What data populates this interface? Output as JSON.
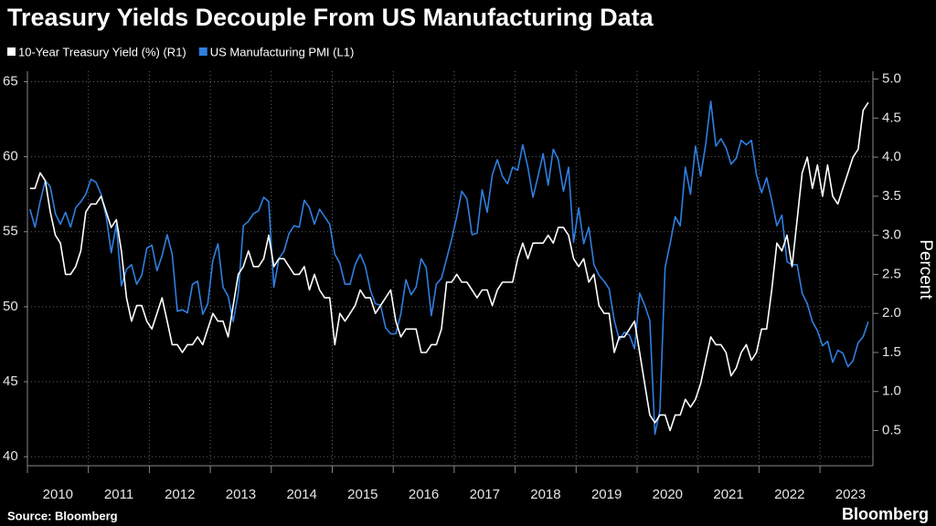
{
  "chart_data": {
    "type": "line",
    "title": "Treasury Yields Decouple From US Manufacturing Data",
    "y2_label": "Percent",
    "source": "Source: Bloomberg",
    "brand": "Bloomberg",
    "categories": [
      "2010",
      null,
      null,
      null,
      null,
      null,
      null,
      null,
      null,
      null,
      null,
      null,
      "2011",
      null,
      null,
      null,
      null,
      null,
      null,
      null,
      null,
      null,
      null,
      null,
      "2012",
      null,
      null,
      null,
      null,
      null,
      null,
      null,
      null,
      null,
      null,
      null,
      "2013",
      null,
      null,
      null,
      null,
      null,
      null,
      null,
      null,
      null,
      null,
      null,
      "2014",
      null,
      null,
      null,
      null,
      null,
      null,
      null,
      null,
      null,
      null,
      null,
      "2015",
      null,
      null,
      null,
      null,
      null,
      null,
      null,
      null,
      null,
      null,
      null,
      "2016",
      null,
      null,
      null,
      null,
      null,
      null,
      null,
      null,
      null,
      null,
      null,
      "2017",
      null,
      null,
      null,
      null,
      null,
      null,
      null,
      null,
      null,
      null,
      null,
      "2018",
      null,
      null,
      null,
      null,
      null,
      null,
      null,
      null,
      null,
      null,
      null,
      "2019",
      null,
      null,
      null,
      null,
      null,
      null,
      null,
      null,
      null,
      null,
      null,
      "2020",
      null,
      null,
      null,
      null,
      null,
      null,
      null,
      null,
      null,
      null,
      null,
      "2021",
      null,
      null,
      null,
      null,
      null,
      null,
      null,
      null,
      null,
      null,
      null,
      "2022",
      null,
      null,
      null,
      null,
      null,
      null,
      null,
      null,
      null,
      null,
      null,
      "2023",
      null,
      null,
      null,
      null,
      null,
      null,
      null,
      null,
      null
    ],
    "series": [
      {
        "name": "10-Year Treasury Yield (%) (R1)",
        "color": "#ffffff",
        "axis": "y2",
        "values": [
          3.6,
          3.6,
          3.8,
          3.7,
          3.3,
          3.0,
          2.9,
          2.5,
          2.5,
          2.6,
          2.8,
          3.3,
          3.4,
          3.4,
          3.5,
          3.3,
          3.1,
          3.2,
          2.8,
          2.2,
          1.9,
          2.1,
          2.1,
          1.9,
          1.8,
          2.0,
          2.2,
          1.9,
          1.6,
          1.6,
          1.5,
          1.6,
          1.6,
          1.7,
          1.6,
          1.8,
          2.0,
          1.9,
          1.9,
          1.7,
          2.1,
          2.5,
          2.6,
          2.8,
          2.6,
          2.6,
          2.7,
          3.0,
          2.6,
          2.7,
          2.7,
          2.6,
          2.5,
          2.5,
          2.6,
          2.3,
          2.5,
          2.3,
          2.2,
          2.2,
          1.6,
          2.0,
          1.9,
          2.0,
          2.1,
          2.3,
          2.2,
          2.2,
          2.0,
          2.1,
          2.2,
          2.3,
          1.9,
          1.7,
          1.8,
          1.8,
          1.8,
          1.5,
          1.5,
          1.6,
          1.6,
          1.8,
          2.4,
          2.4,
          2.5,
          2.4,
          2.4,
          2.3,
          2.2,
          2.3,
          2.3,
          2.1,
          2.3,
          2.4,
          2.4,
          2.4,
          2.7,
          2.9,
          2.7,
          2.9,
          2.9,
          2.9,
          3.0,
          2.9,
          3.1,
          3.1,
          3.0,
          2.7,
          2.6,
          2.7,
          2.4,
          2.5,
          2.1,
          2.0,
          2.0,
          1.5,
          1.7,
          1.7,
          1.8,
          1.9,
          1.5,
          1.1,
          0.7,
          0.6,
          0.7,
          0.7,
          0.5,
          0.7,
          0.7,
          0.9,
          0.8,
          0.9,
          1.1,
          1.4,
          1.7,
          1.6,
          1.6,
          1.5,
          1.2,
          1.3,
          1.5,
          1.6,
          1.4,
          1.5,
          1.8,
          1.8,
          2.3,
          2.9,
          2.8,
          3.0,
          2.6,
          3.2,
          3.8,
          4.0,
          3.6,
          3.9,
          3.5,
          3.9,
          3.5,
          3.4,
          3.6,
          3.8,
          4.0,
          4.1,
          4.6,
          4.7
        ]
      },
      {
        "name": "US Manufacturing PMI (L1)",
        "color": "#2f7fe0",
        "axis": "y",
        "values": [
          56.5,
          55.3,
          57.0,
          58.4,
          58.0,
          56.2,
          55.5,
          56.3,
          55.3,
          56.6,
          57.0,
          57.5,
          58.5,
          58.3,
          57.5,
          56.0,
          53.6,
          55.5,
          51.4,
          52.5,
          52.8,
          51.5,
          52.1,
          53.9,
          54.1,
          52.4,
          53.4,
          54.8,
          53.5,
          49.7,
          49.8,
          49.6,
          51.5,
          51.7,
          49.5,
          50.2,
          53.1,
          54.2,
          51.3,
          50.7,
          49.0,
          50.9,
          55.4,
          55.7,
          56.2,
          56.4,
          57.3,
          57.0,
          51.3,
          53.2,
          53.7,
          54.9,
          55.4,
          55.3,
          57.1,
          56.6,
          55.5,
          56.5,
          56.0,
          55.5,
          53.5,
          52.9,
          51.5,
          51.5,
          52.8,
          53.5,
          52.7,
          51.1,
          50.2,
          50.1,
          48.6,
          48.2,
          48.2,
          49.5,
          51.8,
          50.8,
          51.3,
          53.2,
          52.6,
          49.4,
          51.5,
          51.9,
          53.2,
          54.5,
          56.0,
          57.7,
          57.2,
          54.8,
          54.9,
          57.8,
          56.3,
          58.8,
          59.8,
          58.7,
          58.2,
          59.3,
          59.1,
          60.8,
          59.3,
          57.3,
          58.7,
          60.2,
          58.1,
          60.5,
          59.8,
          57.7,
          59.3,
          54.3,
          56.6,
          54.2,
          55.3,
          52.8,
          52.1,
          51.7,
          51.2,
          49.1,
          47.8,
          48.3,
          48.1,
          47.2,
          50.9,
          50.1,
          49.1,
          41.5,
          43.1,
          52.6,
          54.2,
          56.0,
          55.4,
          59.3,
          57.5,
          60.7,
          58.7,
          60.8,
          63.7,
          60.7,
          61.2,
          60.6,
          59.5,
          59.9,
          61.1,
          60.8,
          61.1,
          58.8,
          57.6,
          58.6,
          57.1,
          55.4,
          56.1,
          53.0,
          52.8,
          52.8,
          50.9,
          50.2,
          49.0,
          48.4,
          47.4,
          47.7,
          46.3,
          47.1,
          46.9,
          46.0,
          46.4,
          47.6,
          48.0,
          49.0
        ]
      }
    ],
    "ylim": [
      39.4,
      65.7
    ],
    "yticks": [
      40,
      45,
      50,
      55,
      60,
      65
    ],
    "y2lim": [
      0.05,
      5.1
    ],
    "y2ticks": [
      0.5,
      {
        "value": 1,
        "label": "1.0"
      },
      1.5,
      {
        "value": 2,
        "label": "2.0"
      },
      2.5,
      {
        "value": 3,
        "label": "3.0"
      },
      3.5,
      {
        "value": 4,
        "label": "4.0"
      },
      4.5,
      {
        "value": 5,
        "label": "5.0"
      }
    ],
    "grid": true
  }
}
